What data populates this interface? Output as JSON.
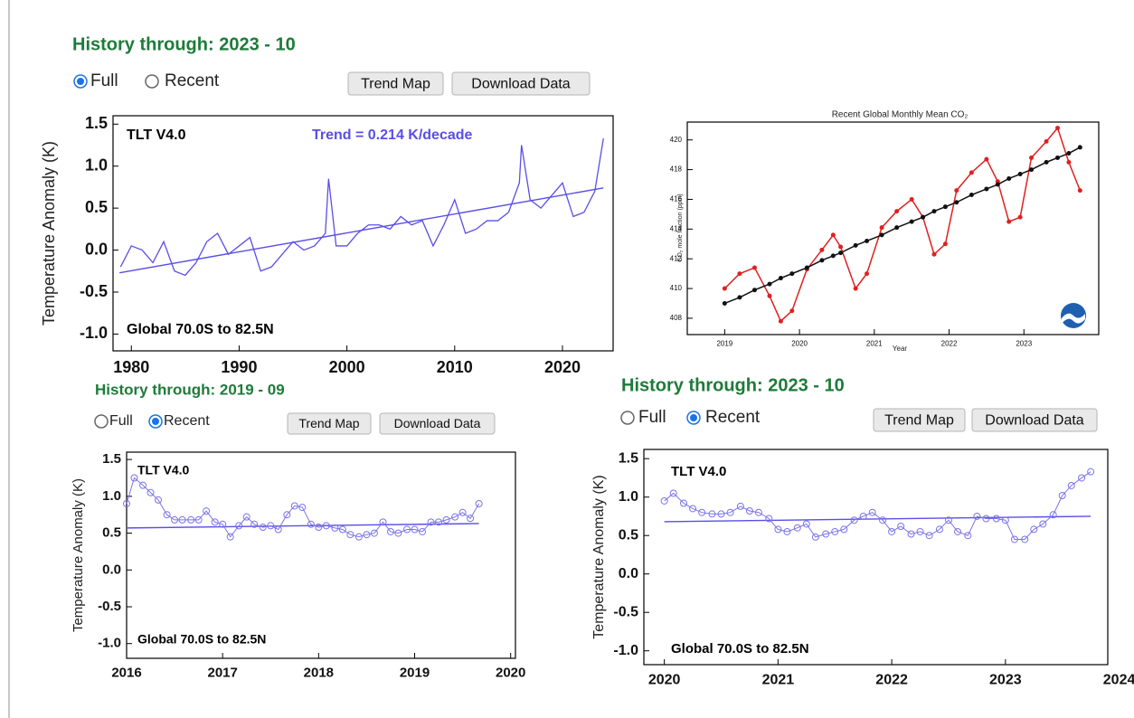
{
  "panels": [
    {
      "title": "History through: 2023 - 10",
      "radios": [
        {
          "label": "Full",
          "checked": true
        },
        {
          "label": "Recent",
          "checked": false
        }
      ],
      "buttons": [
        "Trend Map",
        "Download Data"
      ]
    },
    {
      "title": "History through: 2019 - 09",
      "radios": [
        {
          "label": "Full",
          "checked": false
        },
        {
          "label": "Recent",
          "checked": true
        }
      ],
      "buttons": [
        "Trend Map",
        "Download Data"
      ]
    },
    {
      "title": "History through: 2023 - 10",
      "radios": [
        {
          "label": "Full",
          "checked": false
        },
        {
          "label": "Recent",
          "checked": true
        }
      ],
      "buttons": [
        "Trend Map",
        "Download Data"
      ]
    }
  ],
  "chart_data": [
    {
      "type": "line",
      "ylabel": "Temperature Anomaly (K)",
      "annotations": [
        {
          "text": "TLT V4.0",
          "color": "#000000"
        },
        {
          "text": "Trend =  0.214 K/decade",
          "color": "#5a4ee8"
        },
        {
          "text": "Global  70.0S to  82.5N",
          "color": "#000000"
        }
      ],
      "x": [
        1979,
        1980,
        1981,
        1982,
        1983,
        1984,
        1985,
        1986,
        1987,
        1988,
        1989,
        1990,
        1991,
        1992,
        1993,
        1994,
        1995,
        1996,
        1997,
        1998,
        1998.3,
        1999,
        2000,
        2001,
        2002,
        2003,
        2004,
        2005,
        2006,
        2007,
        2008,
        2009,
        2010,
        2011,
        2012,
        2013,
        2014,
        2015,
        2016,
        2016.2,
        2017,
        2018,
        2019,
        2020,
        2021,
        2022,
        2023,
        2023.8
      ],
      "series": [
        {
          "color": "#5a4ee8",
          "values": [
            -0.2,
            0.05,
            0.0,
            -0.15,
            0.1,
            -0.25,
            -0.3,
            -0.15,
            0.1,
            0.2,
            -0.05,
            0.05,
            0.15,
            -0.25,
            -0.2,
            -0.05,
            0.1,
            0.0,
            0.05,
            0.2,
            0.85,
            0.05,
            0.05,
            0.2,
            0.3,
            0.3,
            0.25,
            0.4,
            0.3,
            0.35,
            0.05,
            0.3,
            0.6,
            0.2,
            0.25,
            0.35,
            0.35,
            0.45,
            0.8,
            1.25,
            0.6,
            0.5,
            0.65,
            0.8,
            0.4,
            0.45,
            0.7,
            1.33
          ]
        }
      ],
      "trend": {
        "color": "#5a4ee8",
        "x": [
          1978.9,
          2023.8
        ],
        "values": [
          -0.27,
          0.74
        ]
      },
      "markers": false,
      "xlim": [
        1978.3,
        2024.7
      ],
      "ylim": [
        -1.2,
        1.6
      ],
      "xticks": [
        1980,
        1990,
        2000,
        2010,
        2020
      ],
      "yticks": [
        {
          "value": -1.0,
          "label": "-1.0"
        },
        {
          "value": -0.5,
          "label": "-0.5"
        },
        {
          "value": 0,
          "label": "0.0"
        },
        {
          "value": 0.5,
          "label": "0.5"
        },
        {
          "value": 1.0,
          "label": "1.0"
        },
        {
          "value": 1.5,
          "label": "1.5"
        }
      ]
    },
    {
      "type": "line",
      "title": "Recent Global Monthly Mean CO₂",
      "ylabel": "CO₂ mole fraction (ppm)",
      "xlabel": "Year",
      "x": [
        2019.0,
        2019.2,
        2019.4,
        2019.6,
        2019.75,
        2019.9,
        2020.1,
        2020.3,
        2020.45,
        2020.55,
        2020.75,
        2020.9,
        2021.1,
        2021.3,
        2021.5,
        2021.65,
        2021.8,
        2021.95,
        2022.1,
        2022.3,
        2022.5,
        2022.65,
        2022.8,
        2022.95,
        2023.1,
        2023.3,
        2023.45,
        2023.6,
        2023.75
      ],
      "series": [
        {
          "color": "#e02020",
          "values": [
            410.0,
            411.0,
            411.4,
            409.5,
            407.8,
            408.5,
            411.3,
            412.6,
            413.6,
            412.8,
            410.0,
            411.0,
            414.1,
            415.2,
            416.0,
            414.8,
            412.3,
            413.0,
            416.6,
            417.8,
            418.7,
            417.2,
            414.5,
            414.8,
            418.8,
            419.9,
            420.8,
            418.5,
            416.6
          ]
        },
        {
          "color": "#111111",
          "values": [
            409.0,
            409.4,
            409.9,
            410.3,
            410.7,
            411.0,
            411.4,
            411.9,
            412.2,
            412.4,
            412.9,
            413.2,
            413.6,
            414.1,
            414.5,
            414.8,
            415.2,
            415.5,
            415.8,
            416.3,
            416.7,
            417.0,
            417.4,
            417.7,
            418.0,
            418.5,
            418.8,
            419.1,
            419.5
          ]
        }
      ],
      "markers": true,
      "xlim": [
        2018.5,
        2024.0
      ],
      "ylim": [
        406.9,
        421.2
      ],
      "xticks": [
        2019,
        2020,
        2021,
        2022,
        2023
      ],
      "yticks": [
        408,
        410,
        412,
        414,
        416,
        418,
        420
      ]
    },
    {
      "type": "line",
      "ylabel": "Temperature Anomaly (K)",
      "annotations": [
        {
          "text": "TLT V4.0",
          "color": "#000000"
        },
        {
          "text": "Global  70.0S to  82.5N",
          "color": "#000000"
        }
      ],
      "x": [
        2016.0,
        2016.08,
        2016.17,
        2016.25,
        2016.33,
        2016.42,
        2016.5,
        2016.58,
        2016.67,
        2016.75,
        2016.83,
        2016.92,
        2017.0,
        2017.08,
        2017.17,
        2017.25,
        2017.33,
        2017.42,
        2017.5,
        2017.58,
        2017.67,
        2017.75,
        2017.83,
        2017.92,
        2018.0,
        2018.08,
        2018.17,
        2018.25,
        2018.33,
        2018.42,
        2018.5,
        2018.58,
        2018.67,
        2018.75,
        2018.83,
        2018.92,
        2019.0,
        2019.08,
        2019.17,
        2019.25,
        2019.33,
        2019.42,
        2019.5,
        2019.58,
        2019.67
      ],
      "series": [
        {
          "color": "#7b74e8",
          "values": [
            0.9,
            1.25,
            1.15,
            1.05,
            0.95,
            0.75,
            0.68,
            0.68,
            0.68,
            0.68,
            0.8,
            0.65,
            0.62,
            0.45,
            0.6,
            0.72,
            0.62,
            0.58,
            0.6,
            0.55,
            0.75,
            0.87,
            0.85,
            0.62,
            0.58,
            0.6,
            0.57,
            0.55,
            0.48,
            0.45,
            0.48,
            0.5,
            0.65,
            0.52,
            0.5,
            0.55,
            0.55,
            0.52,
            0.65,
            0.65,
            0.68,
            0.72,
            0.78,
            0.7,
            0.9
          ]
        }
      ],
      "trend": {
        "color": "#5a4ee8",
        "x": [
          2016.0,
          2019.67
        ],
        "values": [
          0.57,
          0.63
        ]
      },
      "markers": true,
      "xlim": [
        2016.0,
        2020.05
      ],
      "ylim": [
        -1.2,
        1.6
      ],
      "xticks": [
        2016,
        2017,
        2018,
        2019,
        2020
      ],
      "yticks": [
        {
          "value": -1.0,
          "label": "-1.0"
        },
        {
          "value": -0.5,
          "label": "-0.5"
        },
        {
          "value": 0,
          "label": "0.0"
        },
        {
          "value": 0.5,
          "label": "0.5"
        },
        {
          "value": 1.0,
          "label": "1.0"
        },
        {
          "value": 1.5,
          "label": "1.5"
        }
      ]
    },
    {
      "type": "line",
      "ylabel": "Temperature Anomaly (K)",
      "annotations": [
        {
          "text": "TLT V4.0",
          "color": "#000000"
        },
        {
          "text": "Global  70.0S to  82.5N",
          "color": "#000000"
        }
      ],
      "x": [
        2020.0,
        2020.08,
        2020.17,
        2020.25,
        2020.33,
        2020.42,
        2020.5,
        2020.58,
        2020.67,
        2020.75,
        2020.83,
        2020.92,
        2021.0,
        2021.08,
        2021.17,
        2021.25,
        2021.33,
        2021.42,
        2021.5,
        2021.58,
        2021.67,
        2021.75,
        2021.83,
        2021.92,
        2022.0,
        2022.08,
        2022.17,
        2022.25,
        2022.33,
        2022.42,
        2022.5,
        2022.58,
        2022.67,
        2022.75,
        2022.83,
        2022.92,
        2023.0,
        2023.08,
        2023.17,
        2023.25,
        2023.33,
        2023.42,
        2023.5,
        2023.58,
        2023.67,
        2023.75
      ],
      "series": [
        {
          "color": "#7b74e8",
          "values": [
            0.95,
            1.05,
            0.92,
            0.85,
            0.8,
            0.78,
            0.78,
            0.8,
            0.88,
            0.82,
            0.8,
            0.72,
            0.58,
            0.55,
            0.6,
            0.65,
            0.48,
            0.52,
            0.55,
            0.58,
            0.7,
            0.75,
            0.8,
            0.7,
            0.55,
            0.62,
            0.52,
            0.55,
            0.5,
            0.58,
            0.7,
            0.55,
            0.5,
            0.75,
            0.72,
            0.72,
            0.7,
            0.45,
            0.45,
            0.58,
            0.65,
            0.77,
            1.02,
            1.15,
            1.25,
            1.33
          ]
        }
      ],
      "trend": {
        "color": "#5a4ee8",
        "x": [
          2020.0,
          2023.75
        ],
        "values": [
          0.68,
          0.75
        ]
      },
      "markers": true,
      "xlim": [
        2019.82,
        2023.9
      ],
      "ylim": [
        -1.18,
        1.62
      ],
      "xticks": [
        2020,
        2021,
        2022,
        2023,
        2024
      ],
      "yticks": [
        {
          "value": -1.0,
          "label": "-1.0"
        },
        {
          "value": -0.5,
          "label": "-0.5"
        },
        {
          "value": 0,
          "label": "0.0"
        },
        {
          "value": 0.5,
          "label": "0.5"
        },
        {
          "value": 1.0,
          "label": "1.0"
        },
        {
          "value": 1.5,
          "label": "1.5"
        }
      ]
    }
  ]
}
